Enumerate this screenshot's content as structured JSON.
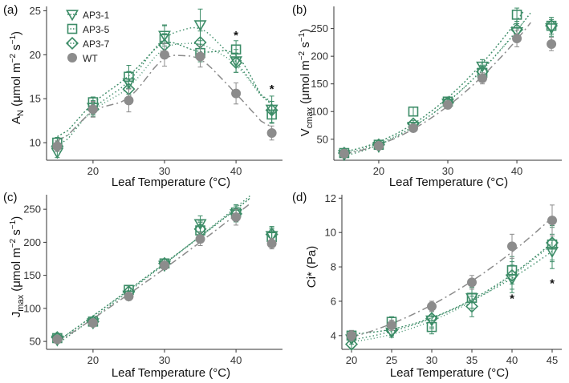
{
  "colors": {
    "ap": "#3c8c67",
    "wt": "#8c8c8c",
    "axis": "#333333",
    "text": "#111111"
  },
  "legend": [
    {
      "name": "AP3-1",
      "marker": "triangle-down"
    },
    {
      "name": "AP3-5",
      "marker": "square"
    },
    {
      "name": "AP3-7",
      "marker": "diamond"
    },
    {
      "name": "WT",
      "marker": "circle"
    }
  ],
  "chart_data": [
    {
      "type": "scatter",
      "panel_label": "(a)",
      "xlabel": "Leaf Temperature (°C)",
      "ylabel": {
        "main": "A",
        "sub": "N",
        "unit_pre": " (μmol m",
        "sup1": "−2",
        "unit_mid": " s",
        "sup2": "−1",
        "unit_post": ")"
      },
      "xlim": [
        13.5,
        46.5
      ],
      "ylim": [
        8,
        25.5
      ],
      "xticks": [
        20,
        30,
        40
      ],
      "yticks": [
        10,
        15,
        20,
        25
      ],
      "x": [
        15,
        20,
        25,
        30,
        35,
        40,
        45
      ],
      "series": [
        {
          "name": "AP3-1",
          "marker": "triangle-down",
          "values": [
            8.9,
            14.0,
            16.8,
            22.2,
            23.4,
            19.3,
            13.8
          ],
          "err": [
            0.6,
            0.8,
            1.3,
            1.2,
            1.8,
            1.3,
            1.5
          ]
        },
        {
          "name": "AP3-5",
          "marker": "square",
          "values": [
            10.0,
            14.6,
            17.5,
            21.8,
            20.2,
            20.6,
            13.2
          ],
          "err": [
            0.6,
            0.6,
            1.3,
            1.5,
            1.0,
            1.0,
            1.0
          ]
        },
        {
          "name": "AP3-7",
          "marker": "diamond",
          "values": [
            9.6,
            13.8,
            16.1,
            21.1,
            21.4,
            19.1,
            13.7
          ],
          "err": [
            0.6,
            0.8,
            1.1,
            1.3,
            1.3,
            1.1,
            1.0
          ]
        },
        {
          "name": "WT",
          "marker": "circle",
          "values": [
            9.6,
            13.8,
            14.8,
            20.0,
            19.8,
            15.6,
            11.1
          ],
          "err": [
            0.6,
            0.9,
            1.3,
            1.3,
            1.2,
            1.2,
            0.8
          ]
        }
      ],
      "annotations": [
        {
          "text": "*",
          "x": 40,
          "y": 22.3
        },
        {
          "text": "*",
          "x": 45,
          "y": 16.2
        }
      ]
    },
    {
      "type": "scatter",
      "panel_label": "(b)",
      "xlabel": "Leaf Temperature (°C)",
      "ylabel": {
        "main": "V",
        "sub": "cmax",
        "unit_pre": " (μmol m",
        "sup1": "−2",
        "unit_mid": " s",
        "sup2": "−1",
        "unit_post": ")"
      },
      "xlim": [
        13.5,
        46.5
      ],
      "ylim": [
        12,
        290
      ],
      "xticks": [
        20,
        30,
        40
      ],
      "yticks": [
        50,
        100,
        150,
        200,
        250
      ],
      "x": [
        15,
        20,
        25,
        30,
        35,
        40,
        45
      ],
      "series": [
        {
          "name": "AP3-1",
          "marker": "triangle-down",
          "values": [
            22,
            37,
            73,
            115,
            182,
            244,
            251
          ],
          "err": [
            3,
            4,
            6,
            8,
            12,
            15,
            15
          ]
        },
        {
          "name": "AP3-5",
          "marker": "square",
          "values": [
            25,
            40,
            100,
            118,
            170,
            275,
            255
          ],
          "err": [
            3,
            4,
            8,
            8,
            12,
            12,
            15
          ]
        },
        {
          "name": "AP3-7",
          "marker": "diamond",
          "values": [
            25,
            40,
            78,
            116,
            172,
            248,
            255
          ],
          "err": [
            3,
            4,
            6,
            8,
            12,
            15,
            15
          ]
        },
        {
          "name": "WT",
          "marker": "circle",
          "values": [
            24,
            38,
            70,
            112,
            160,
            232,
            222
          ],
          "err": [
            3,
            4,
            5,
            7,
            10,
            15,
            12
          ]
        }
      ]
    },
    {
      "type": "scatter",
      "panel_label": "(c)",
      "xlabel": "Leaf Temperature (°C)",
      "ylabel": {
        "main": "J",
        "sub": "max",
        "unit_pre": " (μmol m",
        "sup1": "−2",
        "unit_mid": " s",
        "sup2": "−1",
        "unit_post": ")"
      },
      "xlim": [
        13.5,
        46.5
      ],
      "ylim": [
        38,
        272
      ],
      "xticks": [
        20,
        30,
        40
      ],
      "yticks": [
        50,
        100,
        150,
        200,
        250
      ],
      "x": [
        15,
        20,
        25,
        30,
        35,
        40,
        45
      ],
      "series": [
        {
          "name": "AP3-1",
          "marker": "triangle-down",
          "values": [
            52,
            78,
            120,
            165,
            228,
            243,
            210
          ],
          "err": [
            4,
            4,
            6,
            6,
            12,
            12,
            12
          ]
        },
        {
          "name": "AP3-5",
          "marker": "square",
          "values": [
            55,
            80,
            128,
            168,
            218,
            245,
            208
          ],
          "err": [
            4,
            4,
            6,
            6,
            12,
            12,
            12
          ]
        },
        {
          "name": "AP3-7",
          "marker": "diamond",
          "values": [
            56,
            80,
            125,
            168,
            220,
            243,
            212
          ],
          "err": [
            4,
            4,
            6,
            6,
            12,
            12,
            12
          ]
        },
        {
          "name": "WT",
          "marker": "circle",
          "values": [
            53,
            78,
            118,
            165,
            205,
            238,
            198
          ],
          "err": [
            4,
            4,
            6,
            6,
            10,
            12,
            8
          ]
        }
      ]
    },
    {
      "type": "scatter",
      "panel_label": "(d)",
      "xlabel": "Leaf Temperature (°C)",
      "ylabel": {
        "main": "Ci* (Pa)"
      },
      "xlim": [
        18.8,
        46.2
      ],
      "ylim": [
        3.2,
        12.2
      ],
      "xticks": [
        20,
        25,
        30,
        35,
        40,
        45
      ],
      "yticks": [
        4,
        6,
        8,
        10,
        12
      ],
      "x": [
        20,
        25,
        30,
        35,
        40,
        45
      ],
      "series": [
        {
          "name": "AP3-1",
          "marker": "triangle-down",
          "values": [
            3.8,
            4.2,
            4.9,
            6.2,
            7.3,
            8.9
          ],
          "err": [
            0.3,
            0.3,
            0.5,
            0.6,
            0.8,
            1.0
          ]
        },
        {
          "name": "AP3-5",
          "marker": "square",
          "values": [
            4.0,
            4.8,
            4.5,
            6.2,
            7.8,
            9.3
          ],
          "err": [
            0.3,
            0.3,
            0.4,
            0.6,
            0.8,
            1.0
          ]
        },
        {
          "name": "AP3-7",
          "marker": "diamond",
          "values": [
            3.5,
            4.3,
            5.0,
            5.7,
            7.5,
            9.4
          ],
          "err": [
            0.3,
            0.3,
            0.5,
            0.6,
            0.8,
            1.0
          ]
        },
        {
          "name": "WT",
          "marker": "circle",
          "values": [
            4.0,
            4.6,
            5.7,
            7.1,
            9.2,
            10.7
          ],
          "err": [
            0.3,
            0.3,
            0.3,
            0.4,
            0.7,
            0.9
          ]
        }
      ],
      "annotations": [
        {
          "text": "*",
          "x": 40,
          "y": 6.2
        },
        {
          "text": "*",
          "x": 45,
          "y": 7.1
        }
      ]
    }
  ]
}
